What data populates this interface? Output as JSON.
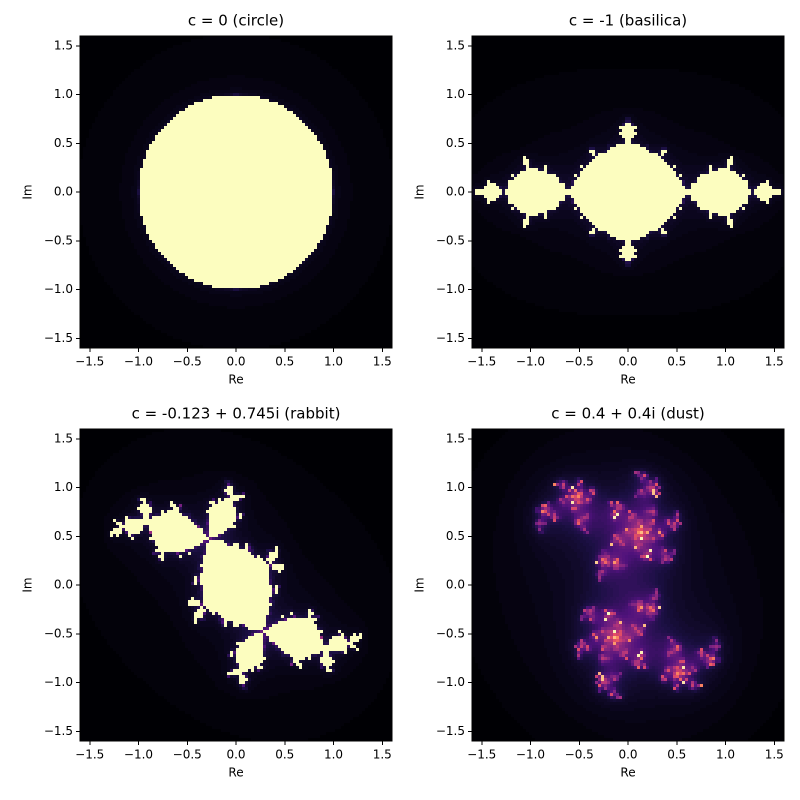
{
  "chart_data": [
    {
      "type": "julia",
      "title": "c = 0 (circle)",
      "c_re": 0,
      "c_im": 0,
      "xlabel": "Re",
      "ylabel": "Im",
      "xlim": [
        -1.6,
        1.6
      ],
      "ylim": [
        -1.6,
        1.6
      ],
      "xticks": [
        {
          "value": -1.5,
          "label": "−1.5"
        },
        {
          "value": -1.0,
          "label": "−1.0"
        },
        {
          "value": -0.5,
          "label": "−0.5"
        },
        {
          "value": 0,
          "label": "0.0"
        },
        0.5,
        {
          "value": 1,
          "label": "1.0"
        },
        1.5
      ],
      "yticks": [
        {
          "value": -1.5,
          "label": "−1.5"
        },
        {
          "value": -1.0,
          "label": "−1.0"
        },
        {
          "value": -0.5,
          "label": "−0.5"
        },
        {
          "value": 0,
          "label": "0.0"
        },
        0.5,
        {
          "value": 1,
          "label": "1.0"
        },
        1.5
      ]
    },
    {
      "type": "julia",
      "title": "c = -1 (basilica)",
      "c_re": -1,
      "c_im": 0,
      "xlabel": "Re",
      "ylabel": "Im",
      "xlim": [
        -1.6,
        1.6
      ],
      "ylim": [
        -1.6,
        1.6
      ],
      "xticks": [
        {
          "value": -1.5,
          "label": "−1.5"
        },
        {
          "value": -1.0,
          "label": "−1.0"
        },
        {
          "value": -0.5,
          "label": "−0.5"
        },
        {
          "value": 0,
          "label": "0.0"
        },
        0.5,
        {
          "value": 1,
          "label": "1.0"
        },
        1.5
      ],
      "yticks": [
        {
          "value": -1.5,
          "label": "−1.5"
        },
        {
          "value": -1.0,
          "label": "−1.0"
        },
        {
          "value": -0.5,
          "label": "−0.5"
        },
        {
          "value": 0,
          "label": "0.0"
        },
        0.5,
        {
          "value": 1,
          "label": "1.0"
        },
        1.5
      ]
    },
    {
      "type": "julia",
      "title": "c = -0.123 + 0.745i (rabbit)",
      "c_re": -0.123,
      "c_im": 0.745,
      "xlabel": "Re",
      "ylabel": "Im",
      "xlim": [
        -1.6,
        1.6
      ],
      "ylim": [
        -1.6,
        1.6
      ],
      "xticks": [
        {
          "value": -1.5,
          "label": "−1.5"
        },
        {
          "value": -1.0,
          "label": "−1.0"
        },
        {
          "value": -0.5,
          "label": "−0.5"
        },
        {
          "value": 0,
          "label": "0.0"
        },
        0.5,
        {
          "value": 1,
          "label": "1.0"
        },
        1.5
      ],
      "yticks": [
        {
          "value": -1.5,
          "label": "−1.5"
        },
        {
          "value": -1.0,
          "label": "−1.0"
        },
        {
          "value": -0.5,
          "label": "−0.5"
        },
        {
          "value": 0,
          "label": "0.0"
        },
        0.5,
        {
          "value": 1,
          "label": "1.0"
        },
        1.5
      ]
    },
    {
      "type": "julia",
      "title": "c = 0.4 + 0.4i (dust)",
      "c_re": 0.4,
      "c_im": 0.4,
      "xlabel": "Re",
      "ylabel": "Im",
      "xlim": [
        -1.6,
        1.6
      ],
      "ylim": [
        -1.6,
        1.6
      ],
      "xticks": [
        {
          "value": -1.5,
          "label": "−1.5"
        },
        {
          "value": -1.0,
          "label": "−1.0"
        },
        {
          "value": -0.5,
          "label": "−0.5"
        },
        {
          "value": 0,
          "label": "0.0"
        },
        0.5,
        {
          "value": 1,
          "label": "1.0"
        },
        1.5
      ],
      "yticks": [
        {
          "value": -1.5,
          "label": "−1.5"
        },
        {
          "value": -1.0,
          "label": "−1.0"
        },
        {
          "value": -0.5,
          "label": "−0.5"
        },
        {
          "value": 0,
          "label": "0.0"
        },
        0.5,
        {
          "value": 1,
          "label": "1.0"
        },
        1.5
      ]
    }
  ]
}
